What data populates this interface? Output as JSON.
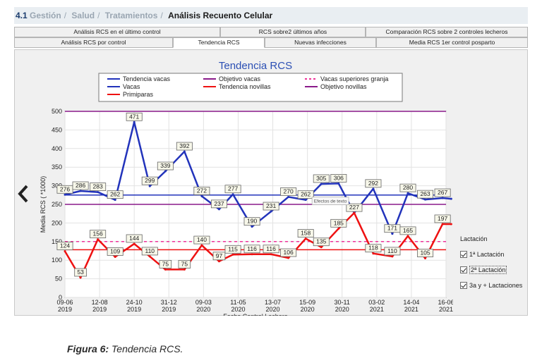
{
  "breadcrumb": {
    "number": "4.1",
    "items": [
      "Gestión",
      "Salud",
      "Tratamientos"
    ],
    "current": "Análisis Recuento Celular"
  },
  "tabs": {
    "row1": [
      "Análisis RCS en el último control",
      "RCS sobre2 últimos años",
      "Comparación RCS sobre 2 controles lecheros"
    ],
    "row2": [
      "Análisis RCS por control",
      "Tendencia RCS",
      "Nuevas infecciones",
      "Media RCS 1er control posparto"
    ],
    "active": "Tendencia RCS"
  },
  "side_legend": {
    "title": "Lactación",
    "options": [
      "1ª Lactación",
      "2ª Lactación",
      "3a y + Lactaciones"
    ]
  },
  "caption": {
    "label": "Figura 6:",
    "text": " Tendencia RCS."
  },
  "colors": {
    "vacas": "#2233bb",
    "primiparas": "#ee1111",
    "objetivo_vacas": "#8a1a8a",
    "superiores": "#ee3399"
  },
  "chart_data": {
    "type": "line",
    "title": "Tendencia RCS",
    "ylabel": "Media RCS ( *1000)",
    "xlabel": "Fecha Control Lechero",
    "ylim": [
      0,
      500
    ],
    "yticks": [
      0,
      50,
      100,
      150,
      200,
      250,
      300,
      350,
      400,
      450,
      500
    ],
    "x_ticks": [
      {
        "x": 0,
        "d": "09-06",
        "y": "2019"
      },
      {
        "x": 1,
        "d": "12-08",
        "y": "2019"
      },
      {
        "x": 2,
        "d": "24-10",
        "y": "2019"
      },
      {
        "x": 3,
        "d": "31-12",
        "y": "2019"
      },
      {
        "x": 4,
        "d": "09-03",
        "y": "2020"
      },
      {
        "x": 5,
        "d": "11-05",
        "y": "2020"
      },
      {
        "x": 6,
        "d": "13-07",
        "y": "2020"
      },
      {
        "x": 7,
        "d": "15-09",
        "y": "2020"
      },
      {
        "x": 8,
        "d": "30-11",
        "y": "2020"
      },
      {
        "x": 9,
        "d": "03-02",
        "y": "2021"
      },
      {
        "x": 10,
        "d": "14-04",
        "y": "2021"
      },
      {
        "x": 11,
        "d": "16-06",
        "y": "2021"
      }
    ],
    "legend": [
      {
        "label": "Tendencia vacas",
        "color": "#2233bb",
        "style": "solid"
      },
      {
        "label": "Objetivo vacas",
        "color": "#8a1a8a",
        "style": "solid"
      },
      {
        "label": "Vacas superiores granja",
        "color": "#ee3399",
        "style": "dashed"
      },
      {
        "label": "Vacas",
        "color": "#2233bb",
        "style": "solid"
      },
      {
        "label": "Tendencia novillas",
        "color": "#ee1111",
        "style": "solid"
      },
      {
        "label": "Objetivo novillas",
        "color": "#8a1a8a",
        "style": "solid"
      },
      {
        "label": "Primiparas",
        "color": "#ee1111",
        "style": "solid"
      }
    ],
    "reference_lines": [
      {
        "name": "Objetivo vacas",
        "value": 500,
        "color": "#8a1a8a",
        "style": "solid"
      },
      {
        "name": "Tendencia vacas",
        "value": 275,
        "color": "#2233bb",
        "style": "solid"
      },
      {
        "name": "Objetivo novillas",
        "value": 250,
        "color": "#8a1a8a",
        "style": "solid"
      },
      {
        "name": "Vacas superiores granja",
        "value": 150,
        "color": "#ee3399",
        "style": "dashed"
      },
      {
        "name": "Tendencia novillas",
        "value": 128,
        "color": "#ee1111",
        "style": "solid"
      }
    ],
    "series": [
      {
        "name": "Vacas",
        "color": "#2233bb",
        "x": [
          0,
          0.45,
          0.95,
          1.45,
          2,
          2.45,
          2.9,
          3.45,
          3.95,
          4.45,
          4.85,
          5.4,
          5.95,
          6.45,
          6.95,
          7.4,
          7.9,
          8.35,
          8.9,
          9.45,
          9.9,
          10.4,
          10.9,
          11.15
        ],
        "y": [
          276,
          286,
          283,
          262,
          471,
          299,
          339,
          392,
          272,
          237,
          277,
          190,
          231,
          270,
          262,
          305,
          306,
          227,
          292,
          171,
          280,
          263,
          267,
          265
        ],
        "labels": [
          {
            "i": 0,
            "t": "276"
          },
          {
            "i": 1,
            "t": "286"
          },
          {
            "i": 2,
            "t": "283"
          },
          {
            "i": 3,
            "t": "262"
          },
          {
            "i": 4,
            "t": "471"
          },
          {
            "i": 5,
            "t": "299"
          },
          {
            "i": 6,
            "t": "339"
          },
          {
            "i": 7,
            "t": "392"
          },
          {
            "i": 8,
            "t": "272"
          },
          {
            "i": 9,
            "t": "237"
          },
          {
            "i": 10,
            "t": "277"
          },
          {
            "i": 11,
            "t": "190"
          },
          {
            "i": 12,
            "t": "231"
          },
          {
            "i": 13,
            "t": "270"
          },
          {
            "i": 14,
            "t": "262"
          },
          {
            "i": 15,
            "t": "305"
          },
          {
            "i": 16,
            "t": "306"
          },
          {
            "i": 17,
            "t": "227"
          },
          {
            "i": 18,
            "t": "292"
          },
          {
            "i": 19,
            "t": "171"
          },
          {
            "i": 20,
            "t": "280"
          },
          {
            "i": 21,
            "t": "263"
          },
          {
            "i": 22,
            "t": "267"
          }
        ]
      },
      {
        "name": "Primiparas",
        "color": "#ee1111",
        "x": [
          0,
          0.45,
          0.95,
          1.45,
          2,
          2.45,
          2.9,
          3.45,
          3.95,
          4.45,
          4.85,
          5.4,
          5.95,
          6.45,
          6.95,
          7.4,
          7.9,
          8.35,
          8.9,
          9.45,
          9.9,
          10.4,
          10.9,
          11.15
        ],
        "y": [
          124,
          53,
          156,
          109,
          144,
          110,
          75,
          75,
          140,
          97,
          115,
          116,
          116,
          106,
          158,
          135,
          185,
          227,
          118,
          110,
          165,
          105,
          197,
          197
        ],
        "labels": [
          {
            "i": 0,
            "t": "124"
          },
          {
            "i": 1,
            "t": "53"
          },
          {
            "i": 2,
            "t": "156"
          },
          {
            "i": 3,
            "t": "109"
          },
          {
            "i": 4,
            "t": "144"
          },
          {
            "i": 5,
            "t": "110"
          },
          {
            "i": 6,
            "t": "75"
          },
          {
            "i": 7,
            "t": "75"
          },
          {
            "i": 8,
            "t": "140"
          },
          {
            "i": 9,
            "t": "97"
          },
          {
            "i": 10,
            "t": "115"
          },
          {
            "i": 11,
            "t": "116"
          },
          {
            "i": 12,
            "t": "116"
          },
          {
            "i": 13,
            "t": "106"
          },
          {
            "i": 14,
            "t": "158"
          },
          {
            "i": 15,
            "t": "135"
          },
          {
            "i": 16,
            "t": "185"
          },
          {
            "i": 18,
            "t": "118"
          },
          {
            "i": 19,
            "t": "110"
          },
          {
            "i": 20,
            "t": "165"
          },
          {
            "i": 21,
            "t": "105"
          },
          {
            "i": 22,
            "t": "197"
          }
        ]
      }
    ],
    "tooltip": "Efectos de texto",
    "grid": true
  }
}
